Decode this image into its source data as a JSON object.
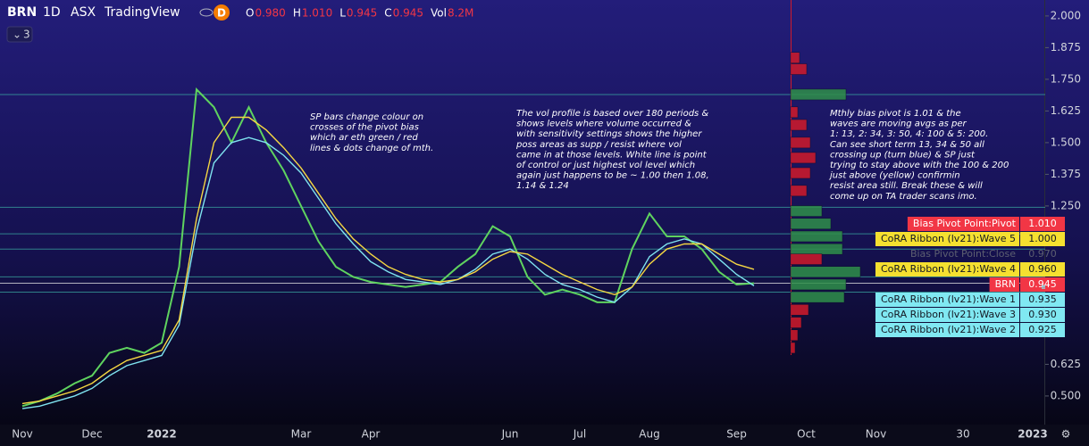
{
  "header": {
    "symbol": "BRN",
    "interval": "1D",
    "exchange": "ASX",
    "source": "TradingView",
    "badge": "D",
    "ohlc": [
      {
        "name": "O",
        "value": "0.980"
      },
      {
        "name": "H",
        "value": "1.010"
      },
      {
        "name": "L",
        "value": "0.945"
      },
      {
        "name": "C",
        "value": "0.945"
      },
      {
        "name": "Vol",
        "value": "8.2M"
      }
    ],
    "collapsed_count": "3"
  },
  "chart_data": {
    "type": "line",
    "categories": [
      "Nov",
      null,
      null,
      null,
      "Dec",
      null,
      null,
      null,
      "2022",
      null,
      null,
      null,
      null,
      null,
      null,
      null,
      "Mar",
      null,
      null,
      null,
      "Apr",
      null,
      null,
      null,
      null,
      null,
      null,
      null,
      "Jun",
      null,
      null,
      null,
      "Jul",
      null,
      null,
      null,
      "Aug",
      null,
      null,
      null,
      null,
      "Sep",
      null,
      null,
      null,
      "Oct",
      null,
      null,
      null,
      "Nov",
      null,
      null,
      null,
      null,
      "30",
      null,
      null,
      null,
      "2023"
    ],
    "series": [
      {
        "color": "#5fd35f",
        "values": [
          0.46,
          0.48,
          0.51,
          0.55,
          0.58,
          0.67,
          0.69,
          0.67,
          0.71,
          1.01,
          1.71,
          1.64,
          1.5,
          1.64,
          1.5,
          1.39,
          1.25,
          1.11,
          1.01,
          0.97,
          0.95,
          0.94,
          0.93,
          0.94,
          0.95,
          1.01,
          1.06,
          1.17,
          1.13,
          0.97,
          0.9,
          0.92,
          0.9,
          0.87,
          0.87,
          1.08,
          1.22,
          1.13,
          1.13,
          1.08,
          0.99,
          0.94,
          0.945,
          null,
          null,
          null,
          null,
          null,
          null,
          null,
          null,
          null,
          null,
          null,
          null,
          null,
          null,
          null,
          null
        ]
      },
      {
        "color": "#7fe3ef",
        "values": [
          0.45,
          0.46,
          0.48,
          0.5,
          0.53,
          0.58,
          0.62,
          0.64,
          0.66,
          0.78,
          1.15,
          1.42,
          1.5,
          1.52,
          1.5,
          1.45,
          1.38,
          1.28,
          1.18,
          1.1,
          1.03,
          0.99,
          0.96,
          0.95,
          0.94,
          0.96,
          1.0,
          1.06,
          1.08,
          1.04,
          0.98,
          0.94,
          0.92,
          0.89,
          0.87,
          0.93,
          1.05,
          1.1,
          1.12,
          1.1,
          1.04,
          0.98,
          0.935,
          null,
          null,
          null,
          null,
          null,
          null,
          null,
          null,
          null,
          null,
          null,
          null,
          null,
          null,
          null,
          null
        ]
      },
      {
        "color": "#f5d742",
        "values": [
          0.47,
          0.48,
          0.5,
          0.52,
          0.55,
          0.6,
          0.64,
          0.66,
          0.68,
          0.8,
          1.2,
          1.5,
          1.6,
          1.6,
          1.55,
          1.48,
          1.4,
          1.3,
          1.2,
          1.12,
          1.06,
          1.01,
          0.98,
          0.96,
          0.95,
          0.96,
          0.99,
          1.04,
          1.07,
          1.06,
          1.02,
          0.98,
          0.95,
          0.92,
          0.9,
          0.93,
          1.02,
          1.08,
          1.1,
          1.1,
          1.06,
          1.02,
          1.0,
          null,
          null,
          null,
          null,
          null,
          null,
          null,
          null,
          null,
          null,
          null,
          null,
          null,
          null,
          null,
          null
        ]
      }
    ],
    "ylim": [
      0.38,
      2.063
    ],
    "yticks": [
      {
        "value": 2.0,
        "label": "2.000"
      },
      {
        "value": 1.875,
        "label": "1.875"
      },
      {
        "value": 1.75,
        "label": "1.750"
      },
      {
        "value": 1.625,
        "label": "1.625"
      },
      {
        "value": 1.5,
        "label": "1.500"
      },
      {
        "value": 1.375,
        "label": "1.375"
      },
      {
        "value": 1.25,
        "label": "1.250"
      },
      {
        "value": 0.625,
        "label": "0.625"
      },
      {
        "value": 0.5,
        "label": "0.500"
      }
    ],
    "grid": false,
    "levels": [
      1.69,
      1.245,
      1.14,
      1.08,
      0.97,
      0.945,
      0.91
    ],
    "level_colors": [
      "#3aa7a0",
      "#3aa7a0",
      "#3aa7a0",
      "#3aa7a0",
      "#3aa7a0",
      "#e8e8e8",
      "#3aa7a0"
    ],
    "volume_profile": {
      "levels": [
        1.835,
        1.79,
        1.69,
        1.62,
        1.57,
        1.5,
        1.44,
        1.38,
        1.31,
        1.23,
        1.18,
        1.13,
        1.08,
        1.04,
        0.99,
        0.94,
        0.89,
        0.84,
        0.79,
        0.74,
        0.69
      ],
      "values": [
        10,
        18,
        62,
        8,
        18,
        22,
        28,
        22,
        18,
        35,
        45,
        58,
        58,
        35,
        78,
        62,
        60,
        20,
        12,
        8,
        5
      ],
      "colors": [
        "#d11a2a",
        "#d11a2a",
        "#2f8f4a",
        "#d11a2a",
        "#d11a2a",
        "#d11a2a",
        "#d11a2a",
        "#d11a2a",
        "#d11a2a",
        "#2f8f4a",
        "#2f8f4a",
        "#2f8f4a",
        "#2f8f4a",
        "#d11a2a",
        "#2f8f4a",
        "#2f8f4a",
        "#2f8f4a",
        "#d11a2a",
        "#d11a2a",
        "#d11a2a",
        "#d11a2a"
      ]
    },
    "price_tags": [
      {
        "name": "Bias Pivot Point:Pivot",
        "value": {
          "value": 1.01,
          "label": "1.010"
        },
        "bg": "#f23645",
        "fg": "#ffffff"
      },
      {
        "name": "CoRA Ribbon (lv21):Wave 5",
        "value": {
          "value": 1.0,
          "label": "1.000"
        },
        "bg": "#f5e030",
        "fg": "#131722"
      },
      {
        "name": "Bias Pivot Point:Close",
        "value": {
          "value": 0.97,
          "label": "0.970"
        },
        "bg": "none",
        "fg": "#5d5f70"
      },
      {
        "name": "CoRA Ribbon (lv21):Wave 4",
        "value": {
          "value": 0.96,
          "label": "0.960"
        },
        "bg": "#f5e030",
        "fg": "#131722"
      },
      {
        "name": "BRN",
        "value": {
          "value": 0.945,
          "label": "0.945"
        },
        "bg": "#f23645",
        "fg": "#ffffff"
      },
      {
        "name": "CoRA Ribbon (lv21):Wave 1",
        "value": {
          "value": 0.935,
          "label": "0.935"
        },
        "bg": "#80e8f2",
        "fg": "#131722"
      },
      {
        "name": "CoRA Ribbon (lv21):Wave 3",
        "value": {
          "value": 0.93,
          "label": "0.930"
        },
        "bg": "#80e8f2",
        "fg": "#131722"
      },
      {
        "name": "CoRA Ribbon (lv21):Wave 2",
        "value": {
          "value": 0.925,
          "label": "0.925"
        },
        "bg": "#80e8f2",
        "fg": "#131722"
      }
    ],
    "annotations": [
      [
        "SP bars change colour on",
        "crosses of the pivot bias",
        "which ar eth green / red",
        "lines & dots change of mth."
      ],
      [
        "The vol profile is based over 180 periods &",
        "shows levels where volume occurred &",
        "with sensitivity settings shows the higher",
        "poss areas as supp / resist where vol",
        "came in at those levels. White line is point",
        "of control or just highest vol level which",
        "again just happens to be ~ 1.00 then 1.08,",
        "1.14 & 1.24"
      ],
      [
        "Mthly bias pivot is 1.01 & the",
        "waves are moving avgs as per",
        "1: 13, 2: 34, 3: 50, 4: 100 & 5: 200.",
        "Can see short term 13, 34 & 50 all",
        "crossing up (turn blue) & SP just",
        "trying to stay above with the 100 & 200",
        "just above (yellow) confirmin",
        "resist area still. Break these & will",
        "come up on TA trader scans imo."
      ]
    ]
  }
}
